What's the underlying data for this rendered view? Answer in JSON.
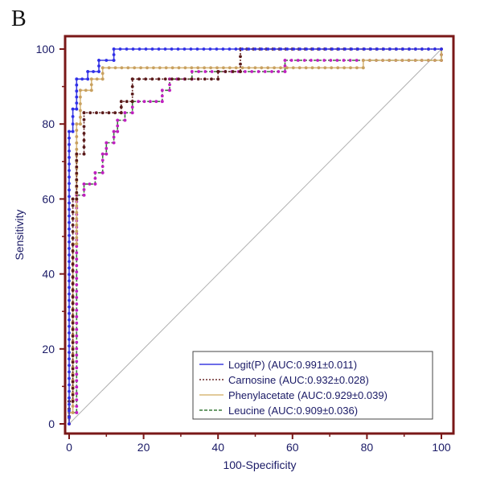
{
  "panel_label": "B",
  "chart_data": {
    "type": "line",
    "title": "",
    "xlabel": "100-Specificity",
    "ylabel": "Sensitivity",
    "xlim": [
      0,
      100
    ],
    "ylim": [
      0,
      100
    ],
    "xticks": [
      0,
      20,
      40,
      60,
      80,
      100
    ],
    "yticks": [
      0,
      20,
      40,
      60,
      80,
      100
    ],
    "grid": false,
    "legend_position": "bottom-right",
    "frame_color": "#7a1818",
    "reference_line": {
      "points": [
        [
          0,
          0
        ],
        [
          100,
          100
        ]
      ],
      "color": "#b0b0b0"
    },
    "series": [
      {
        "name": "Logit(P)",
        "legend_label": "Logit(P)  (AUC:0.991±0.011)",
        "color": "#3d3de0",
        "marker_color": "#2f2fe8",
        "dash": "",
        "points": [
          [
            0,
            0
          ],
          [
            0,
            78
          ],
          [
            1,
            78
          ],
          [
            1,
            84
          ],
          [
            2,
            84
          ],
          [
            2,
            92
          ],
          [
            5,
            92
          ],
          [
            5,
            94
          ],
          [
            8,
            94
          ],
          [
            8,
            97
          ],
          [
            12,
            97
          ],
          [
            12,
            100
          ],
          [
            100,
            100
          ]
        ]
      },
      {
        "name": "Carnosine",
        "legend_label": "Carnosine  (AUC:0.932±0.028)",
        "color": "#6a2a2a",
        "marker_color": "#5a1a1a",
        "dash": "2,2",
        "points": [
          [
            0,
            0
          ],
          [
            0,
            6
          ],
          [
            1,
            6
          ],
          [
            1,
            60
          ],
          [
            2,
            60
          ],
          [
            2,
            72
          ],
          [
            4,
            72
          ],
          [
            4,
            83
          ],
          [
            14,
            83
          ],
          [
            14,
            86
          ],
          [
            17,
            86
          ],
          [
            17,
            92
          ],
          [
            40,
            92
          ],
          [
            40,
            94
          ],
          [
            46,
            94
          ],
          [
            46,
            100
          ],
          [
            100,
            100
          ]
        ]
      },
      {
        "name": "Phenylacetate",
        "legend_label": "Phenylacetate  (AUC:0.929±0.039)",
        "color": "#d8b878",
        "marker_color": "#c8a060",
        "dash": "",
        "points": [
          [
            0,
            0
          ],
          [
            0,
            3
          ],
          [
            1,
            3
          ],
          [
            1,
            48
          ],
          [
            2,
            48
          ],
          [
            2,
            80
          ],
          [
            3,
            80
          ],
          [
            3,
            89
          ],
          [
            6,
            89
          ],
          [
            6,
            92
          ],
          [
            9,
            92
          ],
          [
            9,
            95
          ],
          [
            79,
            95
          ],
          [
            79,
            97
          ],
          [
            100,
            97
          ],
          [
            100,
            100
          ]
        ]
      },
      {
        "name": "Leucine",
        "legend_label": "Leucine  (AUC:0.909±0.036)",
        "color": "#3a7a3a",
        "marker_color": "#c020c0",
        "dash": "4,2",
        "points": [
          [
            0,
            0
          ],
          [
            0,
            3
          ],
          [
            2,
            3
          ],
          [
            2,
            61
          ],
          [
            4,
            61
          ],
          [
            4,
            64
          ],
          [
            7,
            64
          ],
          [
            7,
            67
          ],
          [
            9,
            67
          ],
          [
            9,
            72
          ],
          [
            10,
            72
          ],
          [
            10,
            75
          ],
          [
            12,
            75
          ],
          [
            12,
            78
          ],
          [
            13,
            78
          ],
          [
            13,
            81
          ],
          [
            15,
            81
          ],
          [
            15,
            83
          ],
          [
            17,
            83
          ],
          [
            17,
            86
          ],
          [
            25,
            86
          ],
          [
            25,
            89
          ],
          [
            27,
            89
          ],
          [
            27,
            92
          ],
          [
            33,
            92
          ],
          [
            33,
            94
          ],
          [
            58,
            94
          ],
          [
            58,
            97
          ],
          [
            100,
            97
          ],
          [
            100,
            100
          ]
        ]
      }
    ]
  }
}
